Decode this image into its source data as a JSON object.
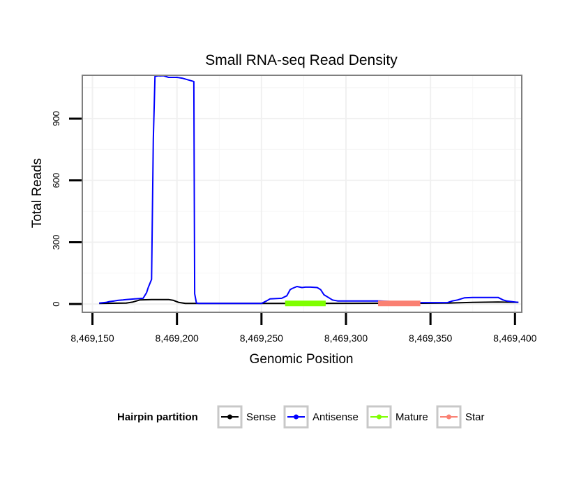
{
  "chart_data": {
    "type": "line",
    "title": "Small RNA-seq Read Density",
    "xlabel": "Genomic Position",
    "ylabel": "Total Reads",
    "xlim": [
      8469144,
      8469404
    ],
    "ylim": [
      -40,
      1110
    ],
    "grid": true,
    "x_ticks": [
      8469150,
      8469200,
      8469250,
      8469300,
      8469350,
      8469400
    ],
    "x_tick_labels": [
      "8,469,150",
      "8,469,200",
      "8,469,250",
      "8,469,300",
      "8,469,350",
      "8,469,400"
    ],
    "y_ticks": [
      0,
      300,
      600,
      900
    ],
    "y_tick_labels": [
      "0",
      "300",
      "600",
      "900"
    ],
    "legend": {
      "title": "Hairpin partition",
      "position": "bottom",
      "items": [
        {
          "label": "Sense",
          "color": "#000000"
        },
        {
          "label": "Antisense",
          "color": "#0000ff"
        },
        {
          "label": "Mature",
          "color": "#7fff00"
        },
        {
          "label": "Star",
          "color": "#fa8072"
        }
      ]
    },
    "series": [
      {
        "name": "Sense",
        "color": "#000000",
        "x": [
          8469154,
          8469170,
          8469174,
          8469178,
          8469185,
          8469195,
          8469198,
          8469201,
          8469205,
          8469255,
          8469320,
          8469345,
          8469360,
          8469375,
          8469390,
          8469402
        ],
        "y": [
          3,
          5,
          10,
          20,
          22,
          22,
          18,
          8,
          3,
          3,
          4,
          4,
          5,
          8,
          10,
          8
        ]
      },
      {
        "name": "Antisense",
        "color": "#0000ff",
        "x": [
          8469154,
          8469158,
          8469160,
          8469163,
          8469165,
          8469168,
          8469170,
          8469175,
          8469180,
          8469182,
          8469183,
          8469185,
          8469186,
          8469187,
          8469189,
          8469190,
          8469192,
          8469195,
          8469198,
          8469200,
          8469203,
          8469210,
          8469210.5,
          8469211.5,
          8469213,
          8469250,
          8469253,
          8469255,
          8469262,
          8469265,
          8469267,
          8469268,
          8469271,
          8469274,
          8469276,
          8469279,
          8469283,
          8469285,
          8469287,
          8469290,
          8469292,
          8469295,
          8469320,
          8469340,
          8469360,
          8469363,
          8469366,
          8469368,
          8469370,
          8469375,
          8469390,
          8469393,
          8469395,
          8469400,
          8469402
        ],
        "y": [
          5,
          8,
          12,
          15,
          18,
          20,
          22,
          25,
          28,
          55,
          80,
          120,
          800,
          1105,
          1108,
          1107,
          1108,
          1100,
          1100,
          1100,
          1096,
          1080,
          50,
          5,
          3,
          3,
          15,
          25,
          28,
          40,
          70,
          75,
          85,
          80,
          82,
          82,
          80,
          70,
          45,
          30,
          20,
          15,
          15,
          7,
          7,
          15,
          20,
          25,
          30,
          32,
          32,
          20,
          15,
          10,
          8
        ]
      }
    ],
    "segments": [
      {
        "name": "Mature",
        "color": "#7fff00",
        "x_start": 8469264,
        "x_end": 8469288,
        "y": 3
      },
      {
        "name": "Star",
        "color": "#fa8072",
        "x_start": 8469319,
        "x_end": 8469344,
        "y": 3
      }
    ]
  }
}
